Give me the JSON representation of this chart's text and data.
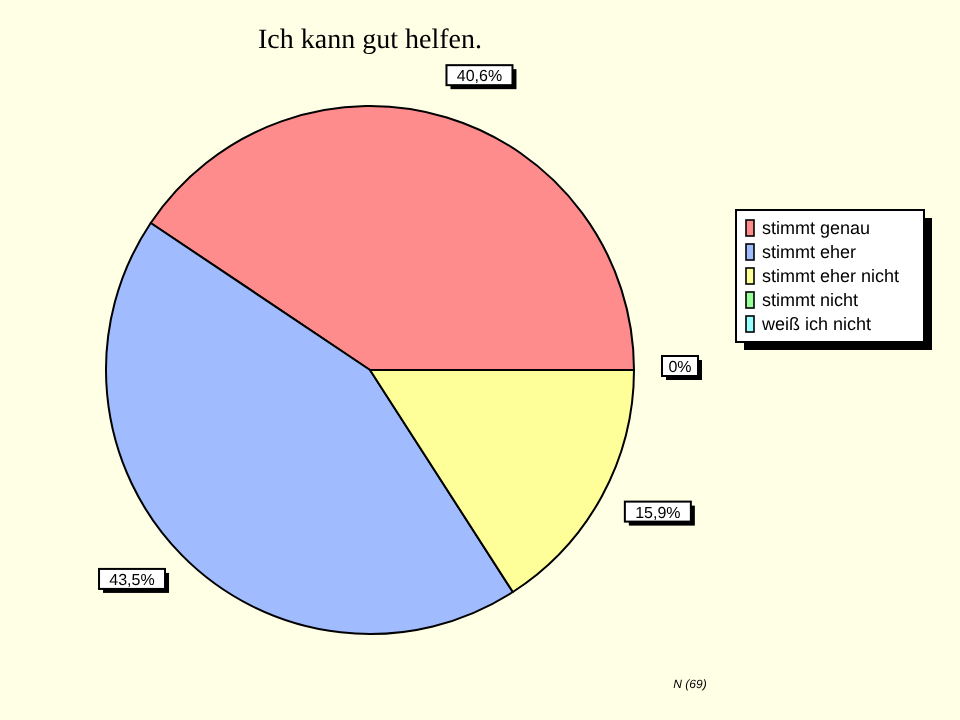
{
  "chart_data": {
    "type": "pie",
    "title": "Ich kann gut helfen.",
    "categories": [
      "stimmt genau",
      "stimmt eher",
      "stimmt eher nicht",
      "stimmt nicht",
      "weiß ich nicht"
    ],
    "values": [
      40.6,
      43.5,
      15.9,
      0,
      0
    ],
    "colors": [
      "#ff8c8c",
      "#a0bcff",
      "#ffff99",
      "#99ff99",
      "#99ffff"
    ],
    "value_labels": [
      "40,6%",
      "43,5%",
      "15,9%",
      "0%",
      null
    ],
    "legend": "right",
    "annotations": [
      "N (69)"
    ]
  }
}
